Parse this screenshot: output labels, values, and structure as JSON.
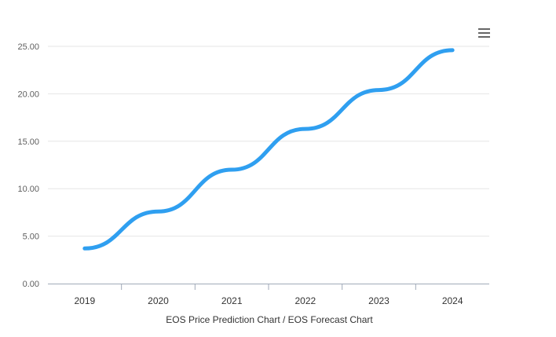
{
  "chart_data": {
    "type": "line",
    "categories": [
      "2019",
      "2020",
      "2021",
      "2022",
      "2023",
      "2024"
    ],
    "series": [
      {
        "values": [
          3.7,
          7.6,
          12.0,
          16.3,
          20.4,
          24.6
        ]
      }
    ],
    "xlabel": "EOS Price Prediction Chart / EOS Forecast Chart",
    "ylabel": "",
    "ylim": [
      0,
      25
    ],
    "yticks": [
      "0.00",
      "5.00",
      "10.00",
      "15.00",
      "20.00",
      "25.00"
    ],
    "grid": true,
    "legend": "none"
  },
  "colors": {
    "series": "#2f9ff0",
    "grid": "#e6e6e6",
    "axis": "#a0aab8"
  },
  "icons": {
    "menu": "hamburger-menu-icon"
  }
}
